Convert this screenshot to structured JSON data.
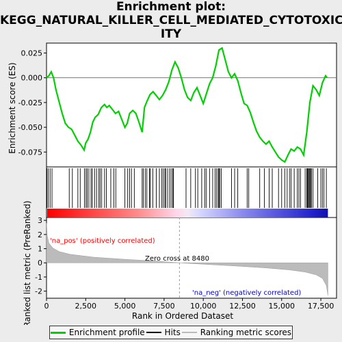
{
  "title_lines": [
    "Enrichment plot:",
    "KEGG_NATURAL_KILLER_CELL_MEDIATED_CYTOTOXIC",
    "ITY"
  ],
  "colors": {
    "es_line": "#00d000",
    "hits": "#000000",
    "rank_bars": "#bbbbbb",
    "pos_text": "#ff0000",
    "neg_text": "#0000cc"
  },
  "chart_data": [
    {
      "type": "line",
      "name": "enrichment-profile",
      "ylabel": "Enrichment score (ES)",
      "xlim": [
        0,
        18500
      ],
      "ylim": [
        -0.09,
        0.035
      ],
      "yticks": [
        0.025,
        0.0,
        -0.025,
        -0.05,
        -0.075
      ],
      "ytick_labels": [
        "0.025",
        "0.000",
        "-0.025",
        "-0.050",
        "-0.075"
      ],
      "points": [
        [
          0,
          0.0
        ],
        [
          150,
          0.002
        ],
        [
          300,
          0.006
        ],
        [
          450,
          0.0
        ],
        [
          600,
          -0.012
        ],
        [
          800,
          -0.024
        ],
        [
          1000,
          -0.036
        ],
        [
          1200,
          -0.046
        ],
        [
          1400,
          -0.05
        ],
        [
          1600,
          -0.052
        ],
        [
          1800,
          -0.058
        ],
        [
          2000,
          -0.064
        ],
        [
          2200,
          -0.068
        ],
        [
          2400,
          -0.073
        ],
        [
          2500,
          -0.066
        ],
        [
          2650,
          -0.062
        ],
        [
          2800,
          -0.055
        ],
        [
          2950,
          -0.045
        ],
        [
          3100,
          -0.04
        ],
        [
          3300,
          -0.037
        ],
        [
          3500,
          -0.03
        ],
        [
          3700,
          -0.027
        ],
        [
          3850,
          -0.03
        ],
        [
          4000,
          -0.028
        ],
        [
          4200,
          -0.032
        ],
        [
          4400,
          -0.036
        ],
        [
          4600,
          -0.034
        ],
        [
          4800,
          -0.042
        ],
        [
          5000,
          -0.05
        ],
        [
          5150,
          -0.046
        ],
        [
          5300,
          -0.036
        ],
        [
          5500,
          -0.033
        ],
        [
          5700,
          -0.036
        ],
        [
          5900,
          -0.045
        ],
        [
          6100,
          -0.055
        ],
        [
          6250,
          -0.03
        ],
        [
          6400,
          -0.024
        ],
        [
          6600,
          -0.017
        ],
        [
          6800,
          -0.014
        ],
        [
          7000,
          -0.018
        ],
        [
          7200,
          -0.022
        ],
        [
          7400,
          -0.018
        ],
        [
          7600,
          -0.012
        ],
        [
          7800,
          -0.004
        ],
        [
          8000,
          0.008
        ],
        [
          8200,
          0.016
        ],
        [
          8400,
          0.01
        ],
        [
          8600,
          0.0
        ],
        [
          8800,
          -0.012
        ],
        [
          9000,
          -0.02
        ],
        [
          9200,
          -0.023
        ],
        [
          9400,
          -0.015
        ],
        [
          9600,
          -0.01
        ],
        [
          9800,
          -0.018
        ],
        [
          10000,
          -0.026
        ],
        [
          10200,
          -0.016
        ],
        [
          10400,
          -0.006
        ],
        [
          10600,
          0.0
        ],
        [
          10800,
          0.012
        ],
        [
          11000,
          0.028
        ],
        [
          11200,
          0.03
        ],
        [
          11400,
          0.018
        ],
        [
          11600,
          0.006
        ],
        [
          11800,
          0.0
        ],
        [
          12000,
          0.004
        ],
        [
          12200,
          -0.003
        ],
        [
          12400,
          -0.015
        ],
        [
          12600,
          -0.026
        ],
        [
          12800,
          -0.028
        ],
        [
          13000,
          -0.035
        ],
        [
          13200,
          -0.045
        ],
        [
          13400,
          -0.054
        ],
        [
          13600,
          -0.06
        ],
        [
          13800,
          -0.064
        ],
        [
          14000,
          -0.067
        ],
        [
          14200,
          -0.064
        ],
        [
          14400,
          -0.07
        ],
        [
          14600,
          -0.075
        ],
        [
          14800,
          -0.08
        ],
        [
          15000,
          -0.083
        ],
        [
          15200,
          -0.085
        ],
        [
          15400,
          -0.078
        ],
        [
          15600,
          -0.072
        ],
        [
          15800,
          -0.074
        ],
        [
          16000,
          -0.07
        ],
        [
          16200,
          -0.072
        ],
        [
          16400,
          -0.078
        ],
        [
          16600,
          -0.055
        ],
        [
          16800,
          -0.025
        ],
        [
          17000,
          -0.008
        ],
        [
          17200,
          -0.012
        ],
        [
          17400,
          -0.018
        ],
        [
          17600,
          -0.005
        ],
        [
          17800,
          0.002
        ],
        [
          17900,
          0.0
        ]
      ]
    },
    {
      "type": "scatter",
      "name": "hits",
      "xlim": [
        0,
        18500
      ],
      "x": [
        30,
        120,
        230,
        350,
        1450,
        1650,
        2000,
        2150,
        2420,
        2520,
        2600,
        2700,
        2840,
        2920,
        3080,
        3200,
        3340,
        3420,
        3520,
        3700,
        3820,
        4100,
        4300,
        4420,
        5000,
        5180,
        5300,
        5420,
        5600,
        6100,
        6180,
        6300,
        6400,
        6560,
        6620,
        6780,
        7000,
        7200,
        7350,
        7450,
        7550,
        7600,
        7720,
        7850,
        7950,
        8050,
        8100,
        8900,
        9200,
        9500,
        9650,
        9900,
        10100,
        10200,
        10400,
        10600,
        10750,
        10850,
        10950,
        11000,
        11050,
        11150,
        11800,
        12000,
        12200,
        12800,
        12900,
        13600,
        13900,
        14200,
        14400,
        14800,
        15000,
        15200,
        15350,
        15500,
        15600,
        15800,
        16000,
        16100,
        16200,
        16500,
        16600,
        16650,
        16700,
        16750,
        16800,
        16850,
        16900,
        17000,
        17300,
        17500,
        17600,
        17700,
        17850
      ]
    },
    {
      "type": "area",
      "name": "ranked-list-metric",
      "xlabel": "Rank in Ordered Dataset",
      "ylabel": "Ranked list metric (PreRanked)",
      "xlim": [
        0,
        18500
      ],
      "ylim": [
        -2.5,
        3.2
      ],
      "xticks": [
        0,
        2500,
        5000,
        7500,
        10000,
        12500,
        15000,
        17500
      ],
      "xtick_labels": [
        "0",
        "2,500",
        "5,000",
        "7,500",
        "10,000",
        "12,500",
        "15,000",
        "17,500"
      ],
      "yticks": [
        3,
        2,
        1,
        0,
        -1,
        -2
      ],
      "ytick_labels": [
        "3",
        "2",
        "1",
        "0",
        "-1",
        "-2"
      ],
      "points": [
        [
          0,
          2.8
        ],
        [
          50,
          1.9
        ],
        [
          150,
          1.4
        ],
        [
          400,
          1.05
        ],
        [
          800,
          0.8
        ],
        [
          1500,
          0.6
        ],
        [
          3000,
          0.4
        ],
        [
          5000,
          0.25
        ],
        [
          7000,
          0.12
        ],
        [
          8480,
          0.0
        ],
        [
          10000,
          -0.1
        ],
        [
          12000,
          -0.22
        ],
        [
          14000,
          -0.36
        ],
        [
          15500,
          -0.5
        ],
        [
          16500,
          -0.65
        ],
        [
          17200,
          -0.85
        ],
        [
          17600,
          -1.1
        ],
        [
          17850,
          -1.6
        ],
        [
          17950,
          -2.3
        ]
      ],
      "zero_cross": 8480,
      "annotations": {
        "zero_cross": "Zero cross at 8480",
        "pos": "'na_pos' (positively correlated)",
        "neg": "'na_neg' (negatively correlated)"
      }
    }
  ],
  "legend": [
    "Enrichment profile",
    "Hits",
    "Ranking metric scores"
  ]
}
